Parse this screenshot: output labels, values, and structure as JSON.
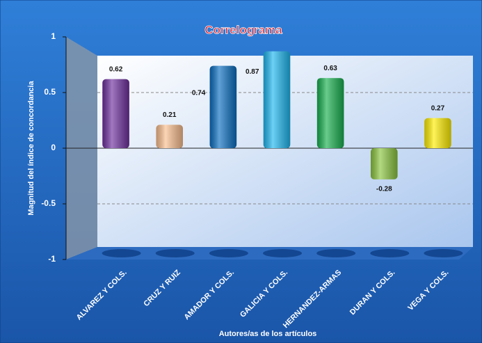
{
  "chart_data": {
    "type": "bar",
    "title": "Correlograma",
    "x_label": "Autores/as de los artículos",
    "y_label": "Magnitud del índice de concordancia",
    "categories": [
      "ALVAREZ Y COLS.",
      "CRUZ Y RUIZ",
      "AMADOR Y COLS.",
      "GALICIA Y COLS.",
      "HERNANDEZ-ARMAS",
      "DURAN Y COLS.",
      "VEGA Y COLS."
    ],
    "values": [
      0.62,
      0.21,
      0.74,
      0.87,
      0.63,
      -0.28,
      0.27
    ],
    "colors": [
      "#7030a0",
      "#fbbf8f",
      "#0b6fc2",
      "#1fb8f0",
      "#18b14f",
      "#8cc63f",
      "#ffee00"
    ],
    "ylim": [
      -1,
      1
    ],
    "yticks": [
      -1,
      -0.5,
      0,
      0.5,
      1
    ],
    "grid": true
  }
}
